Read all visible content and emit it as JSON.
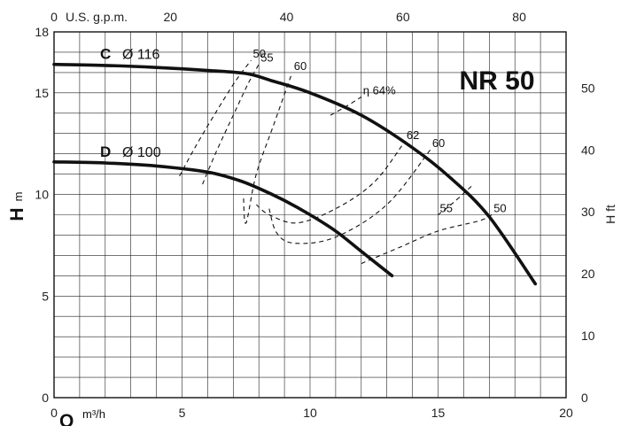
{
  "chart_data": {
    "type": "line",
    "title": "NR 50",
    "x_axis": {
      "symbol": "Q",
      "unit": "m³/h",
      "range": [
        0,
        20
      ],
      "ticks": [
        "0",
        "5",
        "10",
        "15",
        "20"
      ]
    },
    "x_axis_top": {
      "unit": "U.S. g.p.m.",
      "range": [
        0,
        88.06
      ],
      "ticks": [
        "0",
        "20",
        "40",
        "60",
        "80"
      ]
    },
    "y_axis": {
      "symbol": "H",
      "unit": "m",
      "range": [
        0,
        18
      ],
      "ticks": [
        "0",
        "5",
        "10",
        "15",
        "18"
      ]
    },
    "y_axis_right": {
      "unit": "H ft",
      "range": [
        0,
        59.06
      ],
      "ticks": [
        "0",
        "10",
        "20",
        "30",
        "40",
        "50"
      ]
    },
    "grid": true,
    "series": [
      {
        "name": "C",
        "diameter_label": "Ø 116",
        "x": [
          0,
          2,
          4,
          6,
          7.5,
          8.5,
          10,
          12,
          14,
          15.5,
          17,
          18.8
        ],
        "y": [
          16.4,
          16.35,
          16.25,
          16.1,
          15.95,
          15.6,
          15.0,
          13.9,
          12.3,
          10.8,
          8.9,
          5.6
        ]
      },
      {
        "name": "D",
        "diameter_label": "Ø 100",
        "x": [
          0,
          2,
          4,
          6,
          7.2,
          8,
          9,
          10,
          11,
          12,
          13.2
        ],
        "y": [
          11.6,
          11.55,
          11.4,
          11.1,
          10.7,
          10.3,
          9.7,
          9.0,
          8.2,
          7.2,
          6.0
        ]
      }
    ],
    "efficiency_curves": [
      {
        "label": "50",
        "x": [
          4.9,
          5.5,
          6.3,
          7.1,
          7.7
        ],
        "y": [
          10.9,
          12.3,
          14.0,
          15.6,
          16.6
        ]
      },
      {
        "label": "55",
        "x": [
          5.8,
          6.3,
          7.0,
          7.6,
          8.0
        ],
        "y": [
          10.5,
          12.0,
          13.9,
          15.5,
          16.4
        ]
      },
      {
        "label": "60",
        "x": [
          7.4,
          7.5,
          7.9,
          8.6,
          9.3
        ],
        "y": [
          9.8,
          8.6,
          11.0,
          13.5,
          16.0
        ]
      },
      {
        "label": "62",
        "x": [
          7.9,
          8.4,
          9.5,
          11.0,
          12.5,
          13.7
        ],
        "y": [
          9.5,
          9.0,
          8.6,
          9.3,
          10.6,
          12.6
        ]
      },
      {
        "label": "η 64%",
        "x": [
          10.8,
          11.5,
          12.0
        ],
        "y": [
          13.9,
          14.4,
          14.8
        ]
      },
      {
        "label": "60",
        "x": [
          8.4,
          8.7,
          9.4,
          11.0,
          13.0,
          14.7
        ],
        "y": [
          9.3,
          8.1,
          7.6,
          7.9,
          9.5,
          12.2
        ]
      },
      {
        "label": "55",
        "x": [
          16.3,
          15.6,
          15.0
        ],
        "y": [
          10.4,
          9.6,
          9.0
        ]
      },
      {
        "label": "50",
        "x": [
          12.0,
          13.5,
          15.0,
          16.6,
          17.1
        ],
        "y": [
          6.6,
          7.4,
          8.2,
          8.7,
          9.0
        ]
      }
    ]
  }
}
